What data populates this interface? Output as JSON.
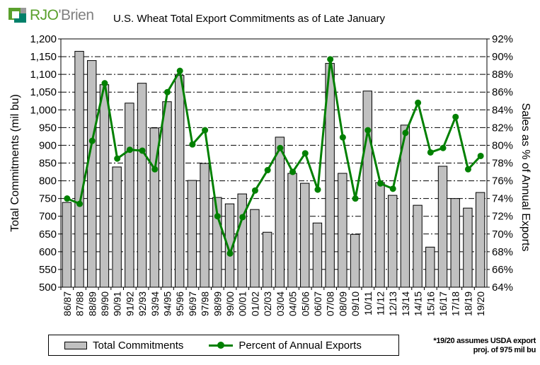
{
  "logo": {
    "text_a": "RJO",
    "text_b": "'Brien"
  },
  "chart_data": {
    "type": "bar+line",
    "title": "U.S. Wheat Total Export Commitments as of Late January",
    "ylabel": "Total Commitments  (mil bu)",
    "y2label": "Sales as % of Annual Exports",
    "ylim": [
      500,
      1200
    ],
    "y2lim": [
      64,
      92
    ],
    "yticks": [
      "500",
      "550",
      "600",
      "650",
      "700",
      "750",
      "800",
      "850",
      "900",
      "950",
      "1,000",
      "1,050",
      "1,100",
      "1,150",
      "1,200"
    ],
    "y2ticks": [
      "64%",
      "66%",
      "68%",
      "70%",
      "72%",
      "74%",
      "76%",
      "78%",
      "80%",
      "82%",
      "84%",
      "86%",
      "88%",
      "90%",
      "92%"
    ],
    "grid": true,
    "categories": [
      "86/87",
      "87/88",
      "88/89",
      "89/90",
      "90/91",
      "91/92",
      "92/93",
      "93/94",
      "94/95",
      "95/96",
      "96/97",
      "97/98",
      "98/99",
      "99/00",
      "00/01",
      "01/02",
      "02/03",
      "03/04",
      "04/05",
      "05/06",
      "06/07",
      "07/08",
      "08/09",
      "09/10",
      "10/11",
      "11/12",
      "12/13",
      "13/14",
      "14/15",
      "15/16",
      "16/17",
      "17/18",
      "18/19",
      "19/20"
    ],
    "series": [
      {
        "name": "Total Commitments",
        "type": "bar",
        "axis": "left",
        "color": "#c0c0c0",
        "values": [
          739,
          1165,
          1139,
          1071,
          839,
          1019,
          1075,
          949,
          1023,
          1097,
          801,
          849,
          753,
          735,
          763,
          719,
          655,
          923,
          821,
          793,
          681,
          1131,
          821,
          649,
          1053,
          795,
          759,
          957,
          731,
          613,
          841,
          750,
          723,
          767
        ]
      },
      {
        "name": "Percent of Annual Exports",
        "type": "line",
        "axis": "right",
        "color": "#008000",
        "values": [
          74.0,
          73.4,
          80.5,
          87.0,
          78.5,
          79.5,
          79.4,
          77.3,
          86.0,
          88.4,
          80.1,
          81.7,
          72.0,
          67.8,
          71.9,
          74.9,
          77.2,
          79.7,
          77.0,
          79.1,
          75.0,
          89.7,
          80.9,
          74.0,
          81.7,
          75.7,
          75.1,
          81.4,
          84.8,
          79.2,
          79.7,
          83.2,
          77.3,
          78.8
        ]
      }
    ],
    "legend": "bottom"
  },
  "legend": {
    "bar_label": "Total Commitments",
    "line_label": "Percent of Annual Exports"
  },
  "note": {
    "line1": "*19/20 assumes USDA export",
    "line2": "proj. of 975 mil bu"
  }
}
